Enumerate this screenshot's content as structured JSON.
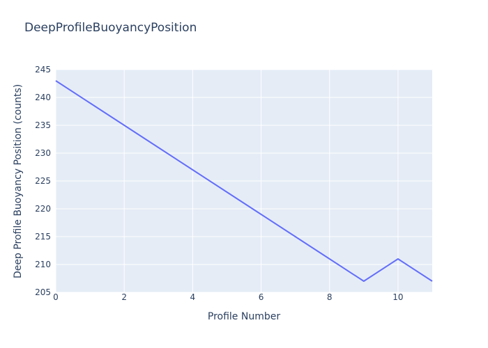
{
  "figure": {
    "title": "DeepProfileBuoyancyPosition"
  },
  "colors": {
    "paper_bg": "#ffffff",
    "plot_bg": "#e5ecf6",
    "grid": "#ffffff",
    "line": "#636efa",
    "text": "#2a3f5f"
  },
  "chart_data": {
    "type": "line",
    "title": "DeepProfileBuoyancyPosition",
    "xlabel": "Profile Number",
    "ylabel": "Deep Profile Buoyancy Position (counts)",
    "x": [
      0,
      1,
      2,
      3,
      4,
      5,
      6,
      7,
      8,
      9,
      10,
      11
    ],
    "y": [
      243,
      239,
      235,
      231,
      227,
      223,
      219,
      215,
      211,
      207,
      211,
      207
    ],
    "xlim": [
      0,
      11
    ],
    "ylim": [
      205,
      245
    ],
    "x_ticks": [
      0,
      2,
      4,
      6,
      8,
      10
    ],
    "y_ticks": [
      205,
      210,
      215,
      220,
      225,
      230,
      235,
      240,
      245
    ],
    "grid": true,
    "legend": "none",
    "line_color": "#636efa",
    "line_width": 2
  }
}
